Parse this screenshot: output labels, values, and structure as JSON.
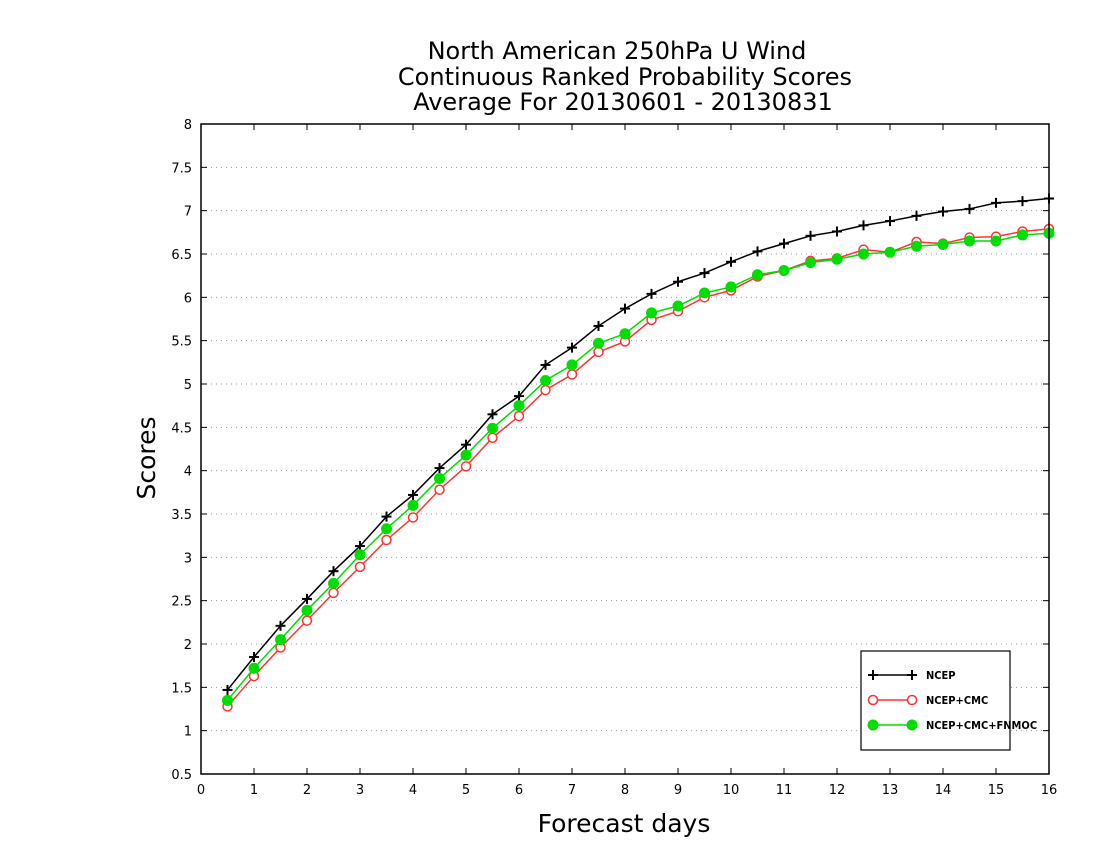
{
  "chart_data": {
    "type": "line",
    "title": [
      "North American 250hPa U Wind",
      "Continuous Ranked Probability Scores",
      "Average For 20130601 - 20130831"
    ],
    "xlabel": "Forecast days",
    "ylabel": "Scores",
    "xlim": [
      0,
      16
    ],
    "ylim": [
      0.5,
      8
    ],
    "xticks": [
      0,
      1,
      2,
      3,
      4,
      5,
      6,
      7,
      8,
      9,
      10,
      11,
      12,
      13,
      14,
      15,
      16
    ],
    "yticks": [
      0.5,
      1,
      1.5,
      2,
      2.5,
      3,
      3.5,
      4,
      4.5,
      5,
      5.5,
      6,
      6.5,
      7,
      7.5,
      8
    ],
    "grid": true,
    "legend_position": "bottom-right",
    "x": [
      0.5,
      1,
      1.5,
      2,
      2.5,
      3,
      3.5,
      4,
      4.5,
      5,
      5.5,
      6,
      6.5,
      7,
      7.5,
      8,
      8.5,
      9,
      9.5,
      10,
      10.5,
      11,
      11.5,
      12,
      12.5,
      13,
      13.5,
      14,
      14.5,
      15,
      15.5,
      16
    ],
    "series": [
      {
        "name": "NCEP",
        "color": "#000000",
        "marker": "plus",
        "values": [
          1.47,
          1.85,
          2.21,
          2.52,
          2.84,
          3.13,
          3.47,
          3.72,
          4.03,
          4.3,
          4.65,
          4.86,
          5.22,
          5.42,
          5.67,
          5.87,
          6.04,
          6.18,
          6.28,
          6.41,
          6.53,
          6.62,
          6.71,
          6.76,
          6.83,
          6.88,
          6.94,
          6.99,
          7.02,
          7.09,
          7.11,
          7.14
        ]
      },
      {
        "name": "NCEP+CMC",
        "color": "#ff3333",
        "marker": "open-circle",
        "values": [
          1.28,
          1.63,
          1.96,
          2.27,
          2.59,
          2.89,
          3.2,
          3.46,
          3.78,
          4.05,
          4.38,
          4.63,
          4.93,
          5.11,
          5.37,
          5.49,
          5.74,
          5.84,
          6.0,
          6.08,
          6.24,
          6.31,
          6.42,
          6.45,
          6.55,
          6.52,
          6.64,
          6.62,
          6.69,
          6.7,
          6.76,
          6.79
        ]
      },
      {
        "name": "NCEP+CMC+FNMOC",
        "color": "#00dd00",
        "marker": "filled-circle",
        "values": [
          1.35,
          1.72,
          2.05,
          2.39,
          2.7,
          3.03,
          3.33,
          3.6,
          3.91,
          4.18,
          4.49,
          4.75,
          5.04,
          5.22,
          5.47,
          5.58,
          5.82,
          5.9,
          6.05,
          6.12,
          6.26,
          6.31,
          6.4,
          6.44,
          6.5,
          6.52,
          6.59,
          6.61,
          6.65,
          6.65,
          6.72,
          6.74
        ]
      }
    ]
  }
}
